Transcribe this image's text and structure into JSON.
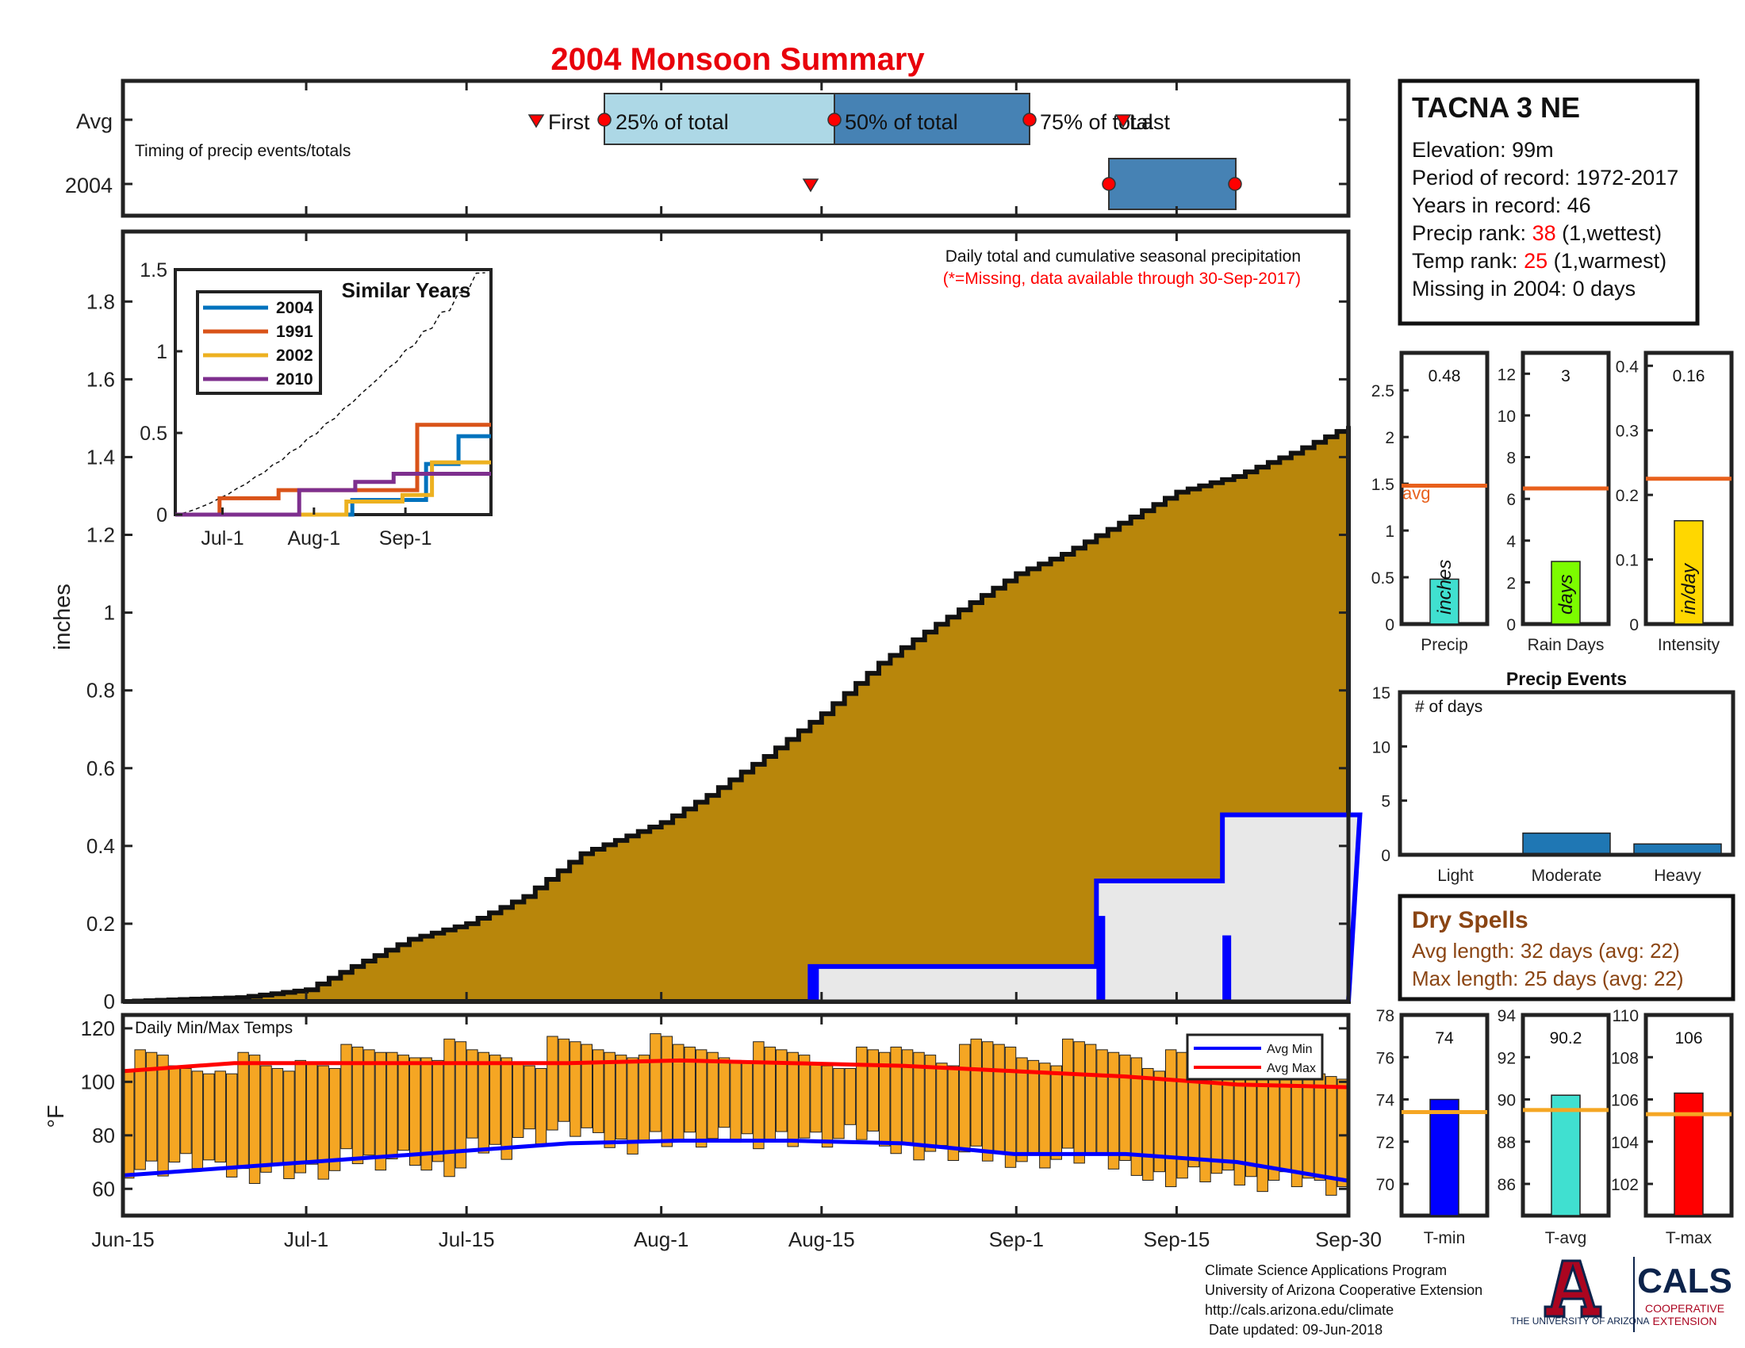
{
  "title": "2004 Monsoon Summary",
  "timing": {
    "caption": "Timing of precip events/totals",
    "row_labels": [
      "Avg",
      "2004"
    ],
    "labels": {
      "first": "First",
      "p25": "25% of total",
      "p50": "50% of total",
      "p75": "75% of total",
      "last": "Last"
    }
  },
  "main": {
    "note": "Daily total and cumulative seasonal precipitation",
    "missing_note": "(*=Missing, data available through 30-Sep-2017)",
    "ylabel": "inches",
    "yticks": [
      "0",
      "0.2",
      "0.4",
      "0.6",
      "0.8",
      "1",
      "1.2",
      "1.4",
      "1.6",
      "1.8"
    ],
    "xticks": [
      "Jun-15",
      "Jul-1",
      "Jul-15",
      "Aug-1",
      "Aug-15",
      "Sep-1",
      "Sep-15",
      "Sep-30"
    ]
  },
  "inset": {
    "title": "Similar Years",
    "yticks": [
      "0",
      "0.5",
      "1",
      "1.5"
    ],
    "xticks": [
      "Jul-1",
      "Aug-1",
      "Sep-1"
    ]
  },
  "temps": {
    "caption": "Daily Min/Max Temps",
    "ylabel": "°F",
    "yticks": [
      "60",
      "80",
      "100",
      "120"
    ],
    "legend": [
      "Avg Min",
      "Avg Max"
    ]
  },
  "station": {
    "name": "TACNA 3 NE",
    "elevation": "Elevation: 99m",
    "period": "Period of record: 1972-2017",
    "years": "Years in record: 46",
    "precip_rank_prefix": "Precip rank: ",
    "precip_rank_value": "38",
    "precip_rank_suffix": " (1,wettest)",
    "temp_rank_prefix": "Temp rank: ",
    "temp_rank_value": "25",
    "temp_rank_suffix": " (1,warmest)",
    "missing": "Missing in 2004: 0 days"
  },
  "summary_bars": [
    {
      "label": "Precip",
      "value_text": "0.48",
      "value": 0.48,
      "avg": 1.48,
      "ymax": 2.9,
      "ticks": [
        0,
        0.5,
        1,
        1.5,
        2,
        2.5
      ],
      "tick_labels": [
        "0",
        "0.5",
        "1",
        "1.5",
        "2",
        "2.5"
      ],
      "unit": "inches",
      "color": "#40e0d0",
      "avg_label": "avg"
    },
    {
      "label": "Rain Days",
      "value_text": "3",
      "value": 3,
      "avg": 6.5,
      "ymax": 13,
      "ticks": [
        0,
        2,
        4,
        6,
        8,
        10,
        12
      ],
      "tick_labels": [
        "0",
        "2",
        "4",
        "6",
        "8",
        "10",
        "12"
      ],
      "unit": "days",
      "color": "#7cfc00"
    },
    {
      "label": "Intensity",
      "value_text": "0.16",
      "value": 0.16,
      "avg": 0.225,
      "ymax": 0.42,
      "ticks": [
        0,
        0.1,
        0.2,
        0.3,
        0.4
      ],
      "tick_labels": [
        "0",
        "0.1",
        "0.2",
        "0.3",
        "0.4"
      ],
      "unit": "in/day",
      "color": "#ffd700"
    }
  ],
  "events": {
    "title": "Precip Events",
    "ylabel": "# of days",
    "ymax": 15,
    "yticks": [
      "0",
      "5",
      "10",
      "15"
    ],
    "categories": [
      "Light",
      "Moderate",
      "Heavy"
    ],
    "values": [
      0,
      2,
      1
    ],
    "color": "#1f77b4"
  },
  "dry_spells": {
    "title": "Dry Spells",
    "avg_length": "Avg length: 32 days (avg: 22)",
    "max_length": "Max length: 25 days (avg: 22)"
  },
  "temp_bars": [
    {
      "label": "T-min",
      "value_text": "74",
      "value": 74,
      "avg": 73.4,
      "ymin": 68.5,
      "ymax": 78,
      "ticks": [
        70,
        72,
        74,
        76,
        78
      ],
      "color": "#0000ff"
    },
    {
      "label": "T-avg",
      "value_text": "90.2",
      "value": 90.2,
      "avg": 89.5,
      "ymin": 84.5,
      "ymax": 94,
      "ticks": [
        86,
        88,
        90,
        92,
        94
      ],
      "color": "#40e0d0"
    },
    {
      "label": "T-max",
      "value_text": "106",
      "value": 106.3,
      "avg": 105.3,
      "ymin": 100.5,
      "ymax": 110,
      "ticks": [
        102,
        104,
        106,
        108,
        110
      ],
      "color": "#ff0000"
    }
  ],
  "footer": {
    "line1": "Climate Science Applications Program",
    "line2": "University of Arizona Cooperative Extension",
    "line3": "http://cals.arizona.edu/climate",
    "line4": " Date updated: 09-Jun-2018",
    "ua_logo": "THE UNIVERSITY OF ARIZONA",
    "cals_logo": "CALS",
    "cals_sub1": "COOPERATIVE",
    "cals_sub2": "EXTENSION"
  },
  "colors": {
    "title": "#e8000b",
    "fill": "#b8860b",
    "daily": "#0000ff",
    "gray": "#e8e8e8",
    "orange": "#f5a623",
    "red": "#ff0000",
    "brown": "#8b4513",
    "avgline": "#e8601c"
  },
  "chart_data": [
    {
      "type": "area",
      "title": "Daily total and cumulative seasonal precipitation",
      "ylabel": "inches",
      "ylim": [
        0,
        1.9
      ],
      "xlim": [
        "Jun-15",
        "Sep-30"
      ],
      "series": [
        {
          "name": "cumulative",
          "x": [
            "Jun-15",
            "Jun-25",
            "Jul-1",
            "Jul-5",
            "Jul-10",
            "Jul-15",
            "Jul-20",
            "Jul-25",
            "Aug-1",
            "Aug-5",
            "Aug-10",
            "Aug-15",
            "Aug-20",
            "Aug-25",
            "Sep-1",
            "Sep-5",
            "Sep-10",
            "Sep-15",
            "Sep-20",
            "Sep-25",
            "Sep-30"
          ],
          "y": [
            0,
            0.01,
            0.03,
            0.09,
            0.16,
            0.2,
            0.27,
            0.38,
            0.46,
            0.53,
            0.63,
            0.74,
            0.87,
            0.97,
            1.1,
            1.15,
            1.23,
            1.31,
            1.35,
            1.41,
            1.48
          ]
        }
      ],
      "daily_events": [
        {
          "date": "Aug-14",
          "value": 0.09
        },
        {
          "date": "Sep-8",
          "value": 0.22
        },
        {
          "date": "Sep-19",
          "value": 0.17
        }
      ],
      "running_total_steps": [
        {
          "from": "Aug-14",
          "to": "Sep-7",
          "value": 0.09
        },
        {
          "from": "Sep-8",
          "to": "Sep-18",
          "value": 0.31
        },
        {
          "from": "Sep-19",
          "to": "Sep-30",
          "value": 0.48
        }
      ]
    },
    {
      "type": "line",
      "title": "Similar Years",
      "ylim": [
        0,
        1.5
      ],
      "series": [
        {
          "name": "2004",
          "color": "#0072bd",
          "x": [
            "Jun-15",
            "Aug-14",
            "Sep-8",
            "Sep-19",
            "Sep-30"
          ],
          "y": [
            0,
            0.09,
            0.31,
            0.48,
            0.48
          ]
        },
        {
          "name": "1991",
          "color": "#d95319",
          "x": [
            "Jun-15",
            "Jun-30",
            "Jul-20",
            "Sep-5",
            "Sep-30"
          ],
          "y": [
            0,
            0.1,
            0.15,
            0.55,
            0.55
          ]
        },
        {
          "name": "2002",
          "color": "#edb120",
          "x": [
            "Jun-15",
            "Aug-12",
            "Aug-31",
            "Sep-10",
            "Sep-30"
          ],
          "y": [
            0,
            0.08,
            0.12,
            0.32,
            0.32
          ]
        },
        {
          "name": "2010",
          "color": "#7e2f8e",
          "x": [
            "Jun-15",
            "Jul-27",
            "Aug-15",
            "Aug-28",
            "Sep-30"
          ],
          "y": [
            0,
            0.15,
            0.2,
            0.25,
            0.25
          ]
        }
      ]
    },
    {
      "type": "bar",
      "title": "Daily Min/Max Temps",
      "ylabel": "°F",
      "ylim": [
        50,
        125
      ],
      "avg_min": [
        65,
        68,
        71,
        74,
        77,
        78,
        78,
        77,
        73,
        73,
        70,
        63
      ],
      "avg_max": [
        104,
        107,
        107,
        107,
        107,
        108,
        107,
        106,
        104,
        102,
        99,
        98
      ],
      "daily_min": [
        68,
        70,
        66,
        67,
        66,
        71,
        72,
        67,
        75,
        80,
        82,
        77,
        79,
        78,
        79,
        79,
        78,
        80,
        74,
        73,
        72,
        71,
        72,
        69,
        64,
        65,
        63,
        64,
        60
      ],
      "daily_max": [
        108,
        105,
        107,
        104,
        109,
        110,
        111,
        112,
        110,
        109,
        113,
        112,
        114,
        112,
        111,
        110,
        108,
        109,
        112,
        110,
        113,
        110,
        112,
        111,
        108,
        107,
        105,
        105,
        103
      ]
    }
  ]
}
